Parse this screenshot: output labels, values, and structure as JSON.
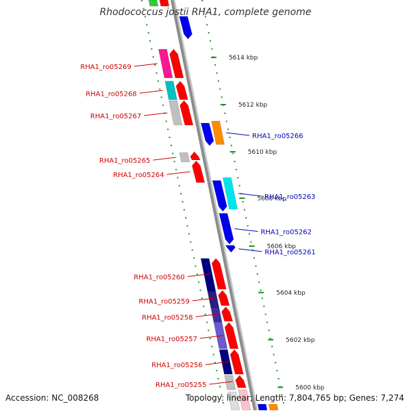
{
  "title": "Rhodococcus jostii RHA1, complete genome",
  "footer": {
    "accession": "Accession: NC_008268",
    "summary": "Topology: linear; Length: 7,804,765 bp; Genes: 7,274"
  },
  "colors": {
    "forward_label": "#cc0000",
    "reverse_label": "#0000bb",
    "backbone": "#8c8c8c",
    "tick": "#228b22"
  },
  "scale_ticks": [
    {
      "label": "5614 kbp",
      "t": 0.14
    },
    {
      "label": "5612 kbp",
      "t": 0.255
    },
    {
      "label": "5610 kbp",
      "t": 0.37
    },
    {
      "label": "5608 kbp",
      "t": 0.483
    },
    {
      "label": "5606 kbp",
      "t": 0.6
    },
    {
      "label": "5604 kbp",
      "t": 0.713
    },
    {
      "label": "5602 kbp",
      "t": 0.828
    },
    {
      "label": "5600 kbp",
      "t": 0.944
    }
  ],
  "genes": [
    {
      "id": "g-top-1",
      "label": "",
      "strand": "top",
      "lane": "outer",
      "t0": 0.0,
      "t1": 0.015,
      "color": "#33cc33",
      "arrow": "none"
    },
    {
      "id": "g-top-2",
      "label": "",
      "strand": "top",
      "lane": "inner",
      "t0": 0.0,
      "t1": 0.015,
      "color": "#ff0000",
      "arrow": "none"
    },
    {
      "id": "g-top-3",
      "label": "",
      "strand": "bottom",
      "lane": "inner",
      "t0": 0.04,
      "t1": 0.095,
      "color": "#0000ee",
      "arrow": "down"
    },
    {
      "id": "RHA1_ro05269",
      "label": "RHA1_ro05269",
      "strand": "top",
      "lane": "outer",
      "t0": 0.12,
      "t1": 0.19,
      "color": "#ff1493",
      "arrow": "none"
    },
    {
      "id": "RHA1_ro05269b",
      "label": "",
      "strand": "top",
      "lane": "inner",
      "t0": 0.12,
      "t1": 0.19,
      "color": "#ff0000",
      "arrow": "up"
    },
    {
      "id": "RHA1_ro05268",
      "label": "RHA1_ro05268",
      "strand": "top",
      "lane": "outer",
      "t0": 0.198,
      "t1": 0.243,
      "color": "#00c0c0",
      "arrow": "none"
    },
    {
      "id": "RHA1_ro05268b",
      "label": "",
      "strand": "top",
      "lane": "inner",
      "t0": 0.198,
      "t1": 0.243,
      "color": "#ff0000",
      "arrow": "up"
    },
    {
      "id": "RHA1_ro05267",
      "label": "RHA1_ro05267",
      "strand": "top",
      "lane": "outer",
      "t0": 0.245,
      "t1": 0.305,
      "color": "#c0c0c0",
      "arrow": "none"
    },
    {
      "id": "RHA1_ro05267b",
      "label": "",
      "strand": "top",
      "lane": "inner",
      "t0": 0.245,
      "t1": 0.305,
      "color": "#ff0000",
      "arrow": "up"
    },
    {
      "id": "RHA1_ro05266a",
      "label": "",
      "strand": "bottom",
      "lane": "inner",
      "t0": 0.3,
      "t1": 0.355,
      "color": "#0000ee",
      "arrow": "down"
    },
    {
      "id": "RHA1_ro05266",
      "label": "RHA1_ro05266",
      "strand": "bottom",
      "lane": "outer",
      "t0": 0.295,
      "t1": 0.352,
      "color": "#ff8c00",
      "arrow": "none"
    },
    {
      "id": "RHA1_ro05265",
      "label": "RHA1_ro05265",
      "strand": "top",
      "lane": "outer",
      "t0": 0.372,
      "t1": 0.395,
      "color": "#c0c0c0",
      "arrow": "none"
    },
    {
      "id": "RHA1_ro05265b",
      "label": "",
      "strand": "top",
      "lane": "inner",
      "t0": 0.37,
      "t1": 0.39,
      "color": "#ff0000",
      "arrow": "up"
    },
    {
      "id": "RHA1_ro05264",
      "label": "RHA1_ro05264",
      "strand": "top",
      "lane": "inner",
      "t0": 0.392,
      "t1": 0.445,
      "color": "#ff0000",
      "arrow": "up"
    },
    {
      "id": "RHA1_ro05263a",
      "label": "",
      "strand": "bottom",
      "lane": "inner",
      "t0": 0.44,
      "t1": 0.515,
      "color": "#0000ee",
      "arrow": "down"
    },
    {
      "id": "RHA1_ro05263",
      "label": "RHA1_ro05263",
      "strand": "bottom",
      "lane": "outer",
      "t0": 0.433,
      "t1": 0.51,
      "color": "#00e5ee",
      "arrow": "none"
    },
    {
      "id": "RHA1_ro05262",
      "label": "RHA1_ro05262",
      "strand": "bottom",
      "lane": "inner",
      "t0": 0.52,
      "t1": 0.595,
      "color": "#0000ee",
      "arrow": "down"
    },
    {
      "id": "RHA1_ro05261",
      "label": "RHA1_ro05261",
      "strand": "bottom",
      "lane": "inner",
      "t0": 0.598,
      "t1": 0.615,
      "color": "#0000ee",
      "arrow": "down"
    },
    {
      "id": "RHA1_ro05260a",
      "label": "",
      "strand": "top",
      "lane": "outer",
      "t0": 0.63,
      "t1": 0.71,
      "color": "#000080",
      "arrow": "none"
    },
    {
      "id": "RHA1_ro05260",
      "label": "RHA1_ro05260",
      "strand": "top",
      "lane": "inner",
      "t0": 0.63,
      "t1": 0.705,
      "color": "#ff0000",
      "arrow": "up"
    },
    {
      "id": "RHA1_ro05259a",
      "label": "",
      "strand": "top",
      "lane": "outer",
      "t0": 0.71,
      "t1": 0.75,
      "color": "#2b1e80",
      "arrow": "none"
    },
    {
      "id": "RHA1_ro05259",
      "label": "RHA1_ro05259",
      "strand": "top",
      "lane": "inner",
      "t0": 0.708,
      "t1": 0.745,
      "color": "#ff0000",
      "arrow": "up"
    },
    {
      "id": "RHA1_ro05258a",
      "label": "",
      "strand": "top",
      "lane": "outer",
      "t0": 0.75,
      "t1": 0.785,
      "color": "#3b2ea0",
      "arrow": "none"
    },
    {
      "id": "RHA1_ro05258",
      "label": "RHA1_ro05258",
      "strand": "top",
      "lane": "inner",
      "t0": 0.748,
      "t1": 0.783,
      "color": "#ff0000",
      "arrow": "up"
    },
    {
      "id": "RHA1_ro05257a",
      "label": "",
      "strand": "top",
      "lane": "outer",
      "t0": 0.785,
      "t1": 0.85,
      "color": "#6a5acd",
      "arrow": "none"
    },
    {
      "id": "RHA1_ro05257",
      "label": "RHA1_ro05257",
      "strand": "top",
      "lane": "inner",
      "t0": 0.786,
      "t1": 0.85,
      "color": "#ff0000",
      "arrow": "up"
    },
    {
      "id": "RHA1_ro05256a",
      "label": "",
      "strand": "top",
      "lane": "outer",
      "t0": 0.852,
      "t1": 0.912,
      "color": "#000080",
      "arrow": "none"
    },
    {
      "id": "RHA1_ro05256",
      "label": "RHA1_ro05256",
      "strand": "top",
      "lane": "inner",
      "t0": 0.852,
      "t1": 0.912,
      "color": "#ff0000",
      "arrow": "up"
    },
    {
      "id": "RHA1_ro05255a",
      "label": "",
      "strand": "top",
      "lane": "outer",
      "t0": 0.915,
      "t1": 0.95,
      "color": "#c0c0c0",
      "arrow": "none"
    },
    {
      "id": "RHA1_ro05255",
      "label": "RHA1_ro05255",
      "strand": "top",
      "lane": "inner",
      "t0": 0.915,
      "t1": 0.945,
      "color": "#ff0000",
      "arrow": "up"
    },
    {
      "id": "g-bot-1",
      "label": "",
      "strand": "top",
      "lane": "outer",
      "t0": 0.955,
      "t1": 1.0,
      "color": "#dddddd",
      "arrow": "none"
    },
    {
      "id": "g-bot-2",
      "label": "",
      "strand": "top",
      "lane": "inner",
      "t0": 0.95,
      "t1": 1.0,
      "color": "#ffc0cb",
      "arrow": "none"
    },
    {
      "id": "g-bot-3",
      "label": "",
      "strand": "bottom",
      "lane": "inner",
      "t0": 0.985,
      "t1": 1.0,
      "color": "#0000ee",
      "arrow": "none"
    },
    {
      "id": "g-bot-4",
      "label": "",
      "strand": "bottom",
      "lane": "outer",
      "t0": 0.985,
      "t1": 1.0,
      "color": "#ff8c00",
      "arrow": "none"
    }
  ]
}
